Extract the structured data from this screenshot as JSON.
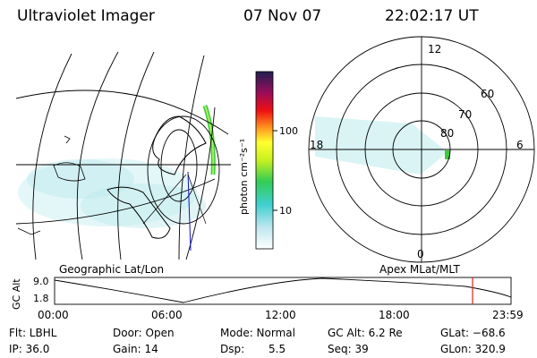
{
  "header": {
    "instrument": "Ultraviolet Imager",
    "date": "07 Nov 07",
    "time": "22:02:17 UT"
  },
  "map_panel": {
    "label": "Geographic Lat/Lon"
  },
  "colorbar": {
    "label": "photon cm⁻²s⁻¹",
    "ticks": [
      "100",
      "10"
    ]
  },
  "polar_panel": {
    "label": "Apex MLat/MLT",
    "mlt_labels": {
      "top": "12",
      "left": "18",
      "right": "6",
      "bottom": "0"
    },
    "lat_labels": [
      "60",
      "70",
      "80"
    ]
  },
  "altitude_plot": {
    "ylabel": "GC Alt",
    "yticks": [
      "9.0",
      "1.8"
    ],
    "xticks": [
      "00:00",
      "06:00",
      "12:00",
      "18:00",
      "23:59"
    ]
  },
  "status": {
    "filter": "Flt: LBHL",
    "ip": "IP: 36.0",
    "door": "Door: Open",
    "gain": "Gain: 14",
    "mode": "Mode: Normal",
    "dsp_label": "Dsp:",
    "dsp_value": "5.5",
    "alt": "GC Alt: 6.2 Re",
    "seq": "Seq: 39",
    "glat": "GLat: −68.6",
    "glon": "GLon: 320.9"
  },
  "colors": {
    "emission": "#9fe3e8",
    "marker": "#e02020",
    "trace_blue": "#1010c0"
  }
}
